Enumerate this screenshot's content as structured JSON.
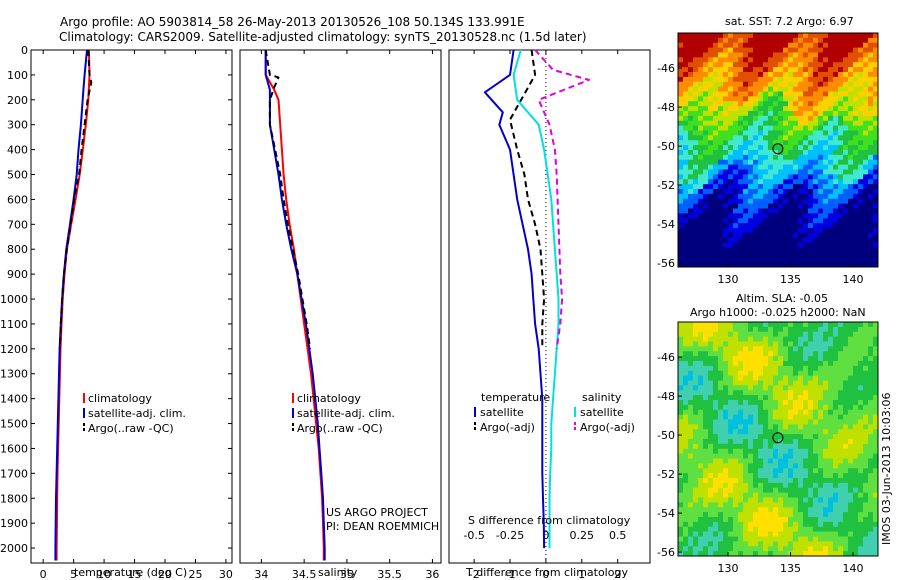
{
  "title_line1": "Argo profile: AO 5903814_58 26-May-2013 20130526_108 50.134S 133.991E",
  "title_line2": "Climatology: CARS2009. Satellite-adjusted climatology: synTS_20130528.nc (1.5d later)",
  "side_stamp": "IMOS 03-Jun-2013 10:03:06",
  "colors": {
    "red": "#ff0000",
    "blue": "#0000cc",
    "black": "#000000",
    "cyan": "#00e0e0",
    "magenta": "#e000e0"
  },
  "chart_data": [
    {
      "type": "line",
      "xlabel": "temperature (deg C)",
      "xlim": [
        -2,
        31
      ],
      "xticks": [
        0,
        5,
        10,
        15,
        20,
        25,
        30
      ],
      "ylim": [
        0,
        2060
      ],
      "yticks": [
        0,
        100,
        200,
        300,
        400,
        500,
        600,
        700,
        800,
        900,
        1000,
        1100,
        1200,
        1300,
        1400,
        1500,
        1600,
        1700,
        1800,
        1900,
        2000
      ],
      "legend_position": "lower-right",
      "series": [
        {
          "name": "climatology",
          "color": "red",
          "dash": "solid",
          "points": [
            [
              7.5,
              0
            ],
            [
              7.6,
              100
            ],
            [
              7.4,
              200
            ],
            [
              7.0,
              300
            ],
            [
              6.5,
              400
            ],
            [
              6.0,
              500
            ],
            [
              5.3,
              600
            ],
            [
              4.6,
              700
            ],
            [
              3.9,
              800
            ],
            [
              3.5,
              900
            ],
            [
              3.2,
              1000
            ],
            [
              3.0,
              1100
            ],
            [
              2.85,
              1200
            ],
            [
              2.75,
              1300
            ],
            [
              2.65,
              1400
            ],
            [
              2.55,
              1500
            ],
            [
              2.45,
              1600
            ],
            [
              2.35,
              1700
            ],
            [
              2.3,
              1800
            ],
            [
              2.25,
              1900
            ],
            [
              2.2,
              2000
            ],
            [
              2.2,
              2050
            ]
          ]
        },
        {
          "name": "satellite-adj. clim.",
          "color": "blue",
          "dash": "solid",
          "points": [
            [
              7.2,
              0
            ],
            [
              6.8,
              100
            ],
            [
              6.6,
              160
            ],
            [
              6.2,
              300
            ],
            [
              5.8,
              400
            ],
            [
              5.5,
              500
            ],
            [
              5.0,
              600
            ],
            [
              4.4,
              700
            ],
            [
              3.8,
              800
            ],
            [
              3.4,
              900
            ],
            [
              3.1,
              1000
            ],
            [
              2.9,
              1100
            ],
            [
              2.7,
              1200
            ],
            [
              2.6,
              1300
            ],
            [
              2.5,
              1400
            ],
            [
              2.4,
              1500
            ],
            [
              2.3,
              1600
            ],
            [
              2.2,
              1700
            ],
            [
              2.1,
              1800
            ],
            [
              2.05,
              1900
            ],
            [
              2.0,
              2000
            ],
            [
              2.0,
              2050
            ]
          ]
        },
        {
          "name": "Argo(..raw -QC)",
          "color": "black",
          "dash": "dashed",
          "points": [
            [
              7.4,
              0
            ],
            [
              7.6,
              100
            ],
            [
              7.9,
              130
            ],
            [
              7.3,
              200
            ],
            [
              6.8,
              300
            ],
            [
              6.3,
              400
            ],
            [
              5.9,
              500
            ],
            [
              5.1,
              600
            ],
            [
              4.5,
              700
            ],
            [
              3.9,
              800
            ],
            [
              3.4,
              900
            ],
            [
              3.1,
              1000
            ],
            [
              2.9,
              1100
            ],
            [
              2.75,
              1200
            ]
          ]
        }
      ]
    },
    {
      "type": "line",
      "xlabel": "salinity",
      "xlim": [
        33.75,
        36.1
      ],
      "xticks": [
        34,
        34.5,
        35,
        35.5,
        36
      ],
      "ylim": [
        0,
        2060
      ],
      "legend_position": "lower-right",
      "annotation_line1": "US ARGO PROJECT",
      "annotation_line2": "PI: DEAN ROEMMICH",
      "series": [
        {
          "name": "climatology",
          "color": "red",
          "dash": "solid",
          "points": [
            [
              34.05,
              0
            ],
            [
              34.05,
              100
            ],
            [
              34.15,
              160
            ],
            [
              34.2,
              200
            ],
            [
              34.22,
              300
            ],
            [
              34.24,
              400
            ],
            [
              34.26,
              500
            ],
            [
              34.29,
              600
            ],
            [
              34.33,
              700
            ],
            [
              34.38,
              800
            ],
            [
              34.42,
              900
            ],
            [
              34.46,
              1000
            ],
            [
              34.5,
              1100
            ],
            [
              34.54,
              1200
            ],
            [
              34.58,
              1300
            ],
            [
              34.61,
              1400
            ],
            [
              34.64,
              1500
            ],
            [
              34.67,
              1600
            ],
            [
              34.69,
              1700
            ],
            [
              34.71,
              1800
            ],
            [
              34.72,
              1900
            ],
            [
              34.73,
              2000
            ],
            [
              34.73,
              2050
            ]
          ]
        },
        {
          "name": "satellite-adj. clim.",
          "color": "blue",
          "dash": "solid",
          "points": [
            [
              34.05,
              0
            ],
            [
              34.05,
              100
            ],
            [
              34.1,
              160
            ],
            [
              34.1,
              300
            ],
            [
              34.15,
              400
            ],
            [
              34.2,
              500
            ],
            [
              34.24,
              600
            ],
            [
              34.29,
              700
            ],
            [
              34.35,
              800
            ],
            [
              34.42,
              900
            ],
            [
              34.47,
              1000
            ],
            [
              34.52,
              1100
            ],
            [
              34.56,
              1200
            ],
            [
              34.6,
              1300
            ],
            [
              34.63,
              1400
            ],
            [
              34.66,
              1500
            ],
            [
              34.68,
              1600
            ],
            [
              34.7,
              1700
            ],
            [
              34.72,
              1800
            ],
            [
              34.73,
              1900
            ],
            [
              34.74,
              2000
            ],
            [
              34.74,
              2050
            ]
          ]
        },
        {
          "name": "Argo(..raw -QC)",
          "color": "black",
          "dash": "dashed",
          "points": [
            [
              34.05,
              0
            ],
            [
              34.1,
              100
            ],
            [
              34.2,
              110
            ],
            [
              34.15,
              150
            ],
            [
              34.1,
              200
            ],
            [
              34.1,
              300
            ],
            [
              34.16,
              400
            ],
            [
              34.22,
              500
            ],
            [
              34.26,
              600
            ],
            [
              34.31,
              700
            ],
            [
              34.37,
              800
            ],
            [
              34.43,
              900
            ],
            [
              34.48,
              1000
            ],
            [
              34.53,
              1100
            ],
            [
              34.57,
              1200
            ]
          ]
        }
      ]
    },
    {
      "type": "line",
      "xlabel": "T difference from climatology",
      "xlabel_top": "S difference from climatology",
      "xlim": [
        -2.7,
        2.9
      ],
      "xticks": [
        -2,
        -1,
        0,
        1,
        2
      ],
      "s_xticks": [
        -0.5,
        -0.25,
        0,
        0.25,
        0.5
      ],
      "ylim": [
        0,
        2060
      ],
      "zero_line": "dotted",
      "legend_heading_temperature": "temperature",
      "legend_heading_salinity": "salinity",
      "series": [
        {
          "name": "satellite",
          "group": "temperature",
          "color": "blue",
          "dash": "solid",
          "points": [
            [
              -0.9,
              0
            ],
            [
              -1.0,
              100
            ],
            [
              -1.7,
              170
            ],
            [
              -1.2,
              250
            ],
            [
              -1.3,
              300
            ],
            [
              -1.0,
              400
            ],
            [
              -0.9,
              500
            ],
            [
              -0.8,
              600
            ],
            [
              -0.65,
              700
            ],
            [
              -0.5,
              800
            ],
            [
              -0.4,
              900
            ],
            [
              -0.35,
              1000
            ],
            [
              -0.3,
              1100
            ],
            [
              -0.2,
              1200
            ],
            [
              -0.15,
              1300
            ],
            [
              -0.1,
              1400
            ],
            [
              -0.1,
              1500
            ],
            [
              -0.1,
              1600
            ],
            [
              -0.1,
              1700
            ],
            [
              -0.08,
              1800
            ],
            [
              -0.06,
              1900
            ],
            [
              -0.05,
              2000
            ]
          ]
        },
        {
          "name": "Argo(-adj)",
          "group": "temperature",
          "color": "black",
          "dash": "dashed",
          "points": [
            [
              -0.4,
              0
            ],
            [
              -0.3,
              100
            ],
            [
              -1.0,
              280
            ],
            [
              -0.8,
              400
            ],
            [
              -0.6,
              500
            ],
            [
              -0.5,
              600
            ],
            [
              -0.3,
              700
            ],
            [
              -0.15,
              800
            ],
            [
              -0.1,
              900
            ],
            [
              -0.05,
              1000
            ],
            [
              -0.1,
              1100
            ],
            [
              -0.1,
              1200
            ]
          ]
        },
        {
          "name": "satellite",
          "group": "salinity",
          "color": "cyan",
          "dash": "solid",
          "points": [
            [
              -0.7,
              0
            ],
            [
              -0.9,
              100
            ],
            [
              -0.8,
              200
            ],
            [
              -0.2,
              300
            ],
            [
              -0.05,
              400
            ],
            [
              0.05,
              500
            ],
            [
              0.15,
              600
            ],
            [
              0.2,
              700
            ],
            [
              0.25,
              800
            ],
            [
              0.3,
              900
            ],
            [
              0.35,
              1000
            ],
            [
              0.35,
              1100
            ],
            [
              0.3,
              1200
            ],
            [
              0.25,
              1300
            ],
            [
              0.2,
              1400
            ],
            [
              0.15,
              1500
            ],
            [
              0.15,
              1600
            ],
            [
              0.12,
              1700
            ],
            [
              0.1,
              1800
            ],
            [
              0.1,
              1900
            ],
            [
              0.1,
              2000
            ]
          ]
        },
        {
          "name": "Argo(-adj)",
          "group": "salinity",
          "color": "magenta",
          "dash": "dashed",
          "points": [
            [
              -0.3,
              0
            ],
            [
              0.2,
              80
            ],
            [
              1.2,
              120
            ],
            [
              -0.2,
              200
            ],
            [
              0.1,
              300
            ],
            [
              0.25,
              400
            ],
            [
              0.3,
              500
            ],
            [
              0.35,
              700
            ],
            [
              0.4,
              900
            ],
            [
              0.45,
              1000
            ],
            [
              0.4,
              1100
            ],
            [
              0.3,
              1200
            ]
          ]
        }
      ]
    }
  ],
  "maps": [
    {
      "title": "sat. SST: 7.2 Argo: 6.97",
      "xlim": [
        126,
        142
      ],
      "ylim": [
        -56.2,
        -44.2
      ],
      "xticks": [
        130,
        135,
        140
      ],
      "yticks": [
        -46,
        -48,
        -50,
        -52,
        -54,
        -56
      ],
      "marker": [
        133.991,
        -50.134
      ],
      "palette": [
        "#00007f",
        "#0000e0",
        "#0060ff",
        "#00c0ff",
        "#40e8d0",
        "#20c040",
        "#40e020",
        "#c0e000",
        "#ffd000",
        "#ff8c00",
        "#e05000",
        "#b00000"
      ]
    },
    {
      "title_line1": "Altim. SLA: -0.05",
      "title_line2": "Argo h1000: -0.025 h2000: NaN",
      "xlim": [
        126,
        142
      ],
      "ylim": [
        -56.2,
        -44.2
      ],
      "xticks": [
        130,
        135,
        140
      ],
      "yticks": [
        -46,
        -48,
        -50,
        -52,
        -54,
        -56
      ],
      "marker": [
        133.991,
        -50.134
      ],
      "palette": [
        "#00c0e0",
        "#40d0b0",
        "#20c040",
        "#60e040",
        "#c0e000",
        "#ffe000",
        "#ffa000"
      ]
    }
  ]
}
